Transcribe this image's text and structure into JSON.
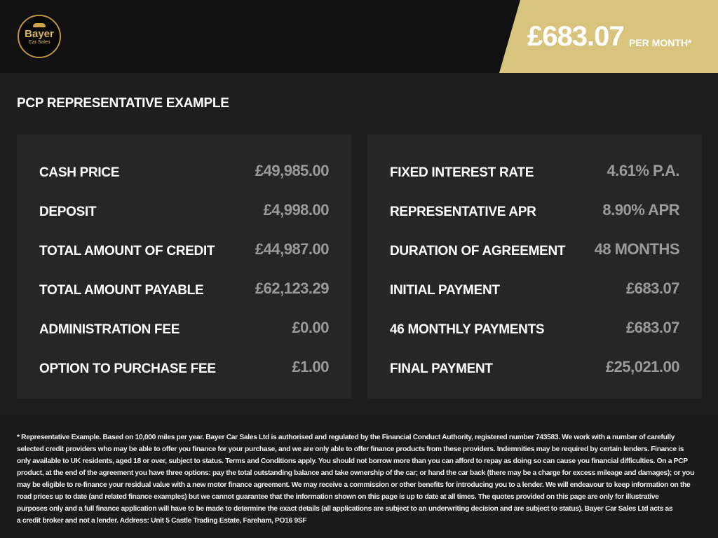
{
  "brand": {
    "name": "Bayer",
    "tagline": "Car Sales",
    "gold": "#d8c47c"
  },
  "header": {
    "price": "£683.07",
    "per_month": "PER MONTH*"
  },
  "title": "PCP REPRESENTATIVE EXAMPLE",
  "left": [
    {
      "label": "CASH PRICE",
      "value": "£49,985.00"
    },
    {
      "label": "DEPOSIT",
      "value": "£4,998.00"
    },
    {
      "label": "TOTAL AMOUNT OF CREDIT",
      "value": "£44,987.00"
    },
    {
      "label": "TOTAL AMOUNT PAYABLE",
      "value": "£62,123.29"
    },
    {
      "label": "ADMINISTRATION FEE",
      "value": "£0.00"
    },
    {
      "label": "OPTION TO PURCHASE FEE",
      "value": "£1.00"
    }
  ],
  "right": [
    {
      "label": "FIXED INTEREST RATE",
      "value": "4.61% P.A."
    },
    {
      "label": "REPRESENTATIVE APR",
      "value": "8.90% APR"
    },
    {
      "label": "DURATION OF AGREEMENT",
      "value": "48 MONTHS"
    },
    {
      "label": "INITIAL PAYMENT",
      "value": "£683.07"
    },
    {
      "label": "46 MONTHLY PAYMENTS",
      "value": "£683.07"
    },
    {
      "label": "FINAL PAYMENT",
      "value": "£25,021.00"
    }
  ],
  "disclaimer": [
    "* Representative Example. Based on 10,000 miles per year. Bayer Car Sales Ltd is authorised and regulated by the Financial Conduct Authority, registered number 743583. We work with a number of carefully",
    "selected credit providers who may be able to offer you finance for your purchase, and we are only able to offer finance products from these providers. Indemnities may be required by certain lenders. Finance is",
    "only available to UK residents, aged 18 or over, subject to status. Terms and Conditions apply. You should not borrow more than you can afford to repay as doing so can cause you financial difficulties. On a PCP",
    "product, at the end of the agreement you have three options: pay the total outstanding balance and take ownership of the car; or hand the car back (there may be a charge for excess mileage and damages); or you",
    "may be eligible to re-finance your residual value with a new motor finance agreement. We may receive a commission or other benefits for introducing you to a lender. We will endeavour to keep information on the",
    "road prices up to date (and related finance examples) but we cannot guarantee that the information shown on this page is up to date at all times. The quotes provided on this page are only for illustrative",
    "purposes only and a full finance application will have to be made to determine the exact details (all applications are subject to an underwriting decision and are subject to status). Bayer Car Sales Ltd acts as",
    "a credit broker and not a lender. Address: Unit 5 Castle Trading Estate, Fareham, PO16 9SF"
  ]
}
